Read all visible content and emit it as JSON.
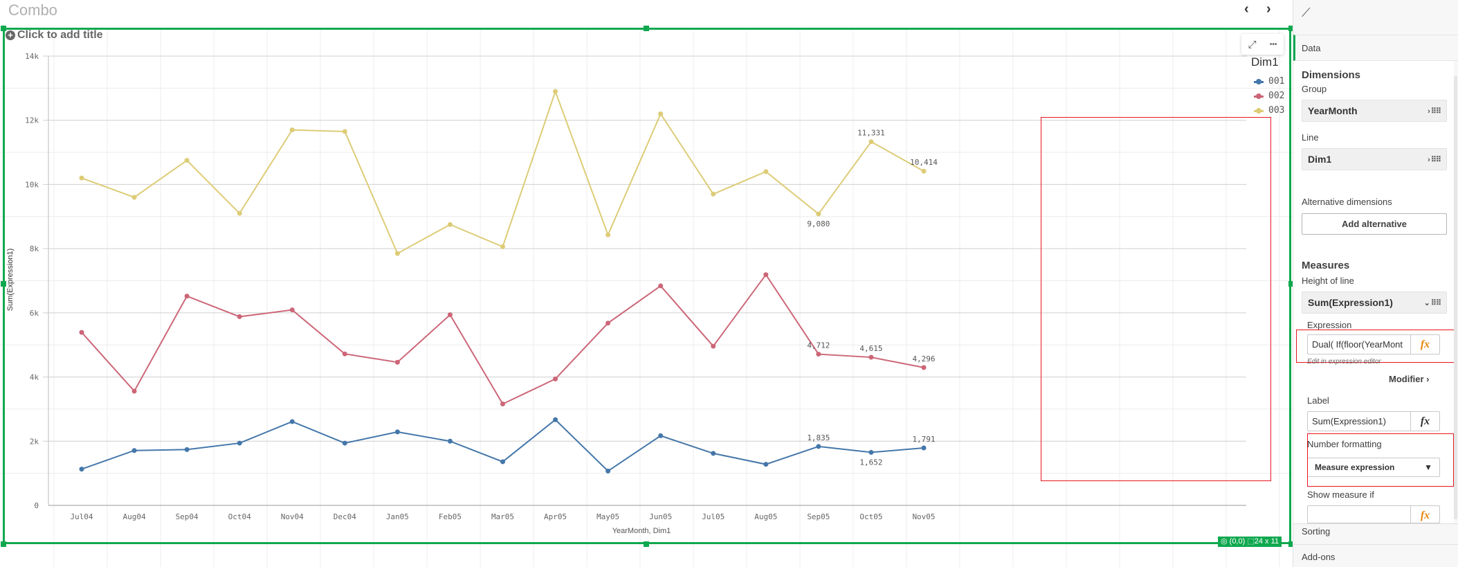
{
  "sheet": {
    "title": "Combo",
    "prev": "‹",
    "next": "›"
  },
  "chart": {
    "add_title": "Click to add title",
    "status_position": "(0,0)",
    "status_size": "24 x 11",
    "menu_expand": "⤢",
    "menu_more": "•••"
  },
  "chart_data": {
    "type": "line",
    "title": "",
    "xlabel": "YearMonth, Dim1",
    "ylabel": "Sum(Expression1)",
    "ylim": [
      0,
      14000
    ],
    "yticks": [
      "0",
      "2k",
      "4k",
      "6k",
      "8k",
      "10k",
      "12k",
      "14k"
    ],
    "yticks_values": [
      0,
      2000,
      4000,
      6000,
      8000,
      10000,
      12000,
      14000
    ],
    "categories": [
      "Jul04",
      "Aug04",
      "Sep04",
      "Oct04",
      "Nov04",
      "Dec04",
      "Jan05",
      "Feb05",
      "Mar05",
      "Apr05",
      "May05",
      "Jun05",
      "Jul05",
      "Aug05",
      "Sep05",
      "Oct05",
      "Nov05"
    ],
    "legend_title": "Dim1",
    "legend_position": "right",
    "grid": true,
    "series": [
      {
        "name": "001",
        "color": "#4477aa",
        "values": [
          1130,
          1710,
          1740,
          1940,
          2610,
          1940,
          2290,
          2000,
          1360,
          2670,
          1070,
          2170,
          1620,
          1280,
          1835,
          1652,
          1791
        ],
        "labels": [
          "",
          "",
          "",
          "",
          "",
          "",
          "",
          "",
          "",
          "",
          "",
          "",
          "",
          "",
          "1,835",
          "1,652",
          "1,791"
        ]
      },
      {
        "name": "002",
        "color": "#cc6677",
        "values": [
          5390,
          3560,
          6520,
          5880,
          6090,
          4720,
          4460,
          5940,
          3160,
          3940,
          5680,
          6840,
          4960,
          7190,
          4712,
          4615,
          4296
        ],
        "labels": [
          "",
          "",
          "",
          "",
          "",
          "",
          "",
          "",
          "",
          "",
          "",
          "",
          "",
          "",
          "4,712",
          "4,615",
          "4,296"
        ]
      },
      {
        "name": "003",
        "color": "#ddcc77",
        "values": [
          10200,
          9600,
          10750,
          9100,
          11700,
          11650,
          7850,
          8750,
          8060,
          12900,
          8430,
          12200,
          9700,
          10400,
          9080,
          11331,
          10414
        ],
        "labels": [
          "",
          "",
          "",
          "",
          "",
          "",
          "",
          "",
          "",
          "",
          "",
          "",
          "",
          "",
          "9,080",
          "11,331",
          "10,414"
        ]
      }
    ]
  },
  "panel": {
    "tab": "Data",
    "dimensions_heading": "Dimensions",
    "group_label": "Group",
    "group_value": "YearMonth",
    "line_label": "Line",
    "line_value": "Dim1",
    "alt_dims_label": "Alternative dimensions",
    "add_alternative": "Add alternative",
    "measures_heading": "Measures",
    "height_label": "Height of line",
    "measure_value": "Sum(Expression1)",
    "expression_label": "Expression",
    "expression_value": "Dual(    If(floor(YearMont",
    "edit_hint": "Edit in expression editor",
    "modifier": "Modifier",
    "label_label": "Label",
    "label_value": "Sum(Expression1)",
    "number_formatting_label": "Number formatting",
    "number_formatting_value": "Measure expression",
    "show_measure_if_label": "Show measure if",
    "show_measure_if_value": "",
    "fx": "fx",
    "sorting": "Sorting",
    "addons": "Add-ons"
  },
  "colors": {
    "selection": "#10a84f",
    "highlight": "#e8141c",
    "fx_orange": "#e8850c"
  }
}
